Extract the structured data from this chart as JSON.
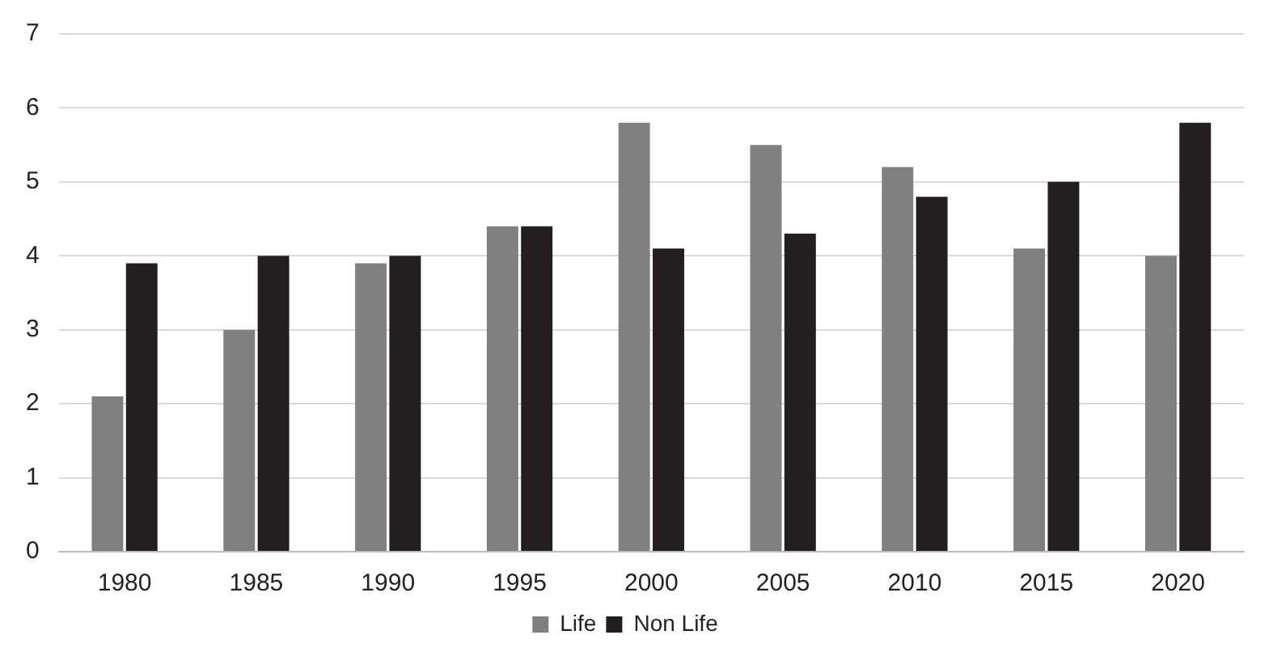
{
  "chart_data": {
    "type": "bar",
    "categories": [
      "1980",
      "1985",
      "1990",
      "1995",
      "2000",
      "2005",
      "2010",
      "2015",
      "2020"
    ],
    "series": [
      {
        "name": "Life",
        "color": "#808080",
        "values": [
          2.1,
          3.0,
          3.9,
          4.4,
          5.8,
          5.5,
          5.2,
          4.1,
          4.0
        ]
      },
      {
        "name": "Non Life",
        "color": "#231f20",
        "values": [
          3.9,
          4.0,
          4.0,
          4.4,
          4.1,
          4.3,
          4.8,
          5.0,
          5.8
        ]
      }
    ],
    "ylim": [
      0,
      7
    ],
    "yticks": [
      0,
      1,
      2,
      3,
      4,
      5,
      6,
      7
    ],
    "grid": "y",
    "legend": "bottom"
  }
}
